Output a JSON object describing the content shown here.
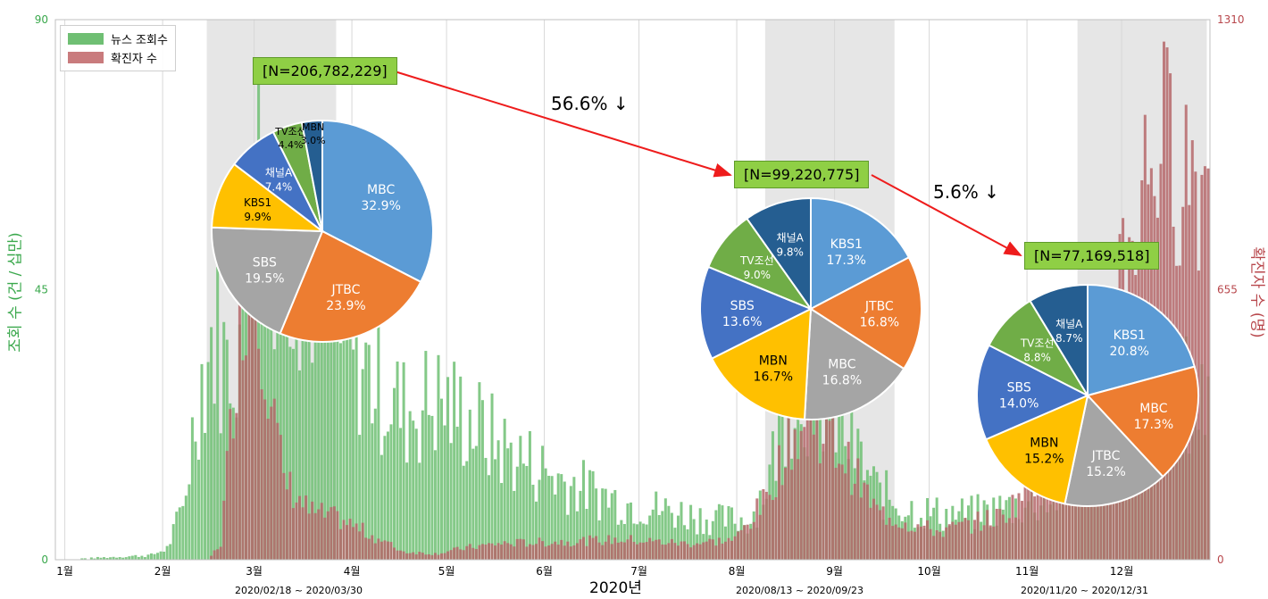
{
  "chart_data": {
    "type": "bar",
    "xlabel": "2020년",
    "ylabel_left": "조회 수 (건 / 십만)",
    "ylabel_right": "확진자 수 (명)",
    "ylim_left": [
      0,
      90
    ],
    "ylim_right": [
      0,
      1310
    ],
    "yticks_left": [
      "0",
      "45",
      "90"
    ],
    "yticks_right": [
      "0",
      "655",
      "1310"
    ],
    "months": [
      "1월",
      "2월",
      "3월",
      "4월",
      "5월",
      "6월",
      "7월",
      "8월",
      "9월",
      "10월",
      "11월",
      "12월"
    ],
    "legend": [
      {
        "label": "뉴스 조회수",
        "color": "#6fbf73"
      },
      {
        "label": "확진자 수",
        "color": "#c97b7d"
      }
    ],
    "news_profile": [
      {
        "day": 0,
        "value": 0
      },
      {
        "day": 30,
        "value": 0.8
      },
      {
        "day": 35,
        "value": 2
      },
      {
        "day": 40,
        "value": 9
      },
      {
        "day": 45,
        "value": 30
      },
      {
        "day": 50,
        "value": 40
      },
      {
        "day": 54,
        "value": 34
      },
      {
        "day": 58,
        "value": 40
      },
      {
        "day": 62,
        "value": 70
      },
      {
        "day": 70,
        "value": 62
      },
      {
        "day": 80,
        "value": 52
      },
      {
        "day": 90,
        "value": 40
      },
      {
        "day": 100,
        "value": 32
      },
      {
        "day": 110,
        "value": 26
      },
      {
        "day": 120,
        "value": 28
      },
      {
        "day": 130,
        "value": 25
      },
      {
        "day": 140,
        "value": 20
      },
      {
        "day": 150,
        "value": 17
      },
      {
        "day": 160,
        "value": 14
      },
      {
        "day": 170,
        "value": 12
      },
      {
        "day": 180,
        "value": 10
      },
      {
        "day": 190,
        "value": 9
      },
      {
        "day": 200,
        "value": 8
      },
      {
        "day": 210,
        "value": 7
      },
      {
        "day": 220,
        "value": 7
      },
      {
        "day": 226,
        "value": 15
      },
      {
        "day": 232,
        "value": 30
      },
      {
        "day": 240,
        "value": 30
      },
      {
        "day": 250,
        "value": 22
      },
      {
        "day": 260,
        "value": 12
      },
      {
        "day": 270,
        "value": 9
      },
      {
        "day": 280,
        "value": 8
      },
      {
        "day": 290,
        "value": 8
      },
      {
        "day": 300,
        "value": 9
      },
      {
        "day": 310,
        "value": 10
      },
      {
        "day": 320,
        "value": 12
      },
      {
        "day": 330,
        "value": 18
      },
      {
        "day": 340,
        "value": 25
      },
      {
        "day": 350,
        "value": 30
      },
      {
        "day": 360,
        "value": 28
      }
    ],
    "cases_profile": [
      {
        "day": 0,
        "value": 0
      },
      {
        "day": 48,
        "value": 0
      },
      {
        "day": 52,
        "value": 40
      },
      {
        "day": 57,
        "value": 500
      },
      {
        "day": 62,
        "value": 800
      },
      {
        "day": 67,
        "value": 450
      },
      {
        "day": 72,
        "value": 200
      },
      {
        "day": 80,
        "value": 120
      },
      {
        "day": 90,
        "value": 100
      },
      {
        "day": 100,
        "value": 60
      },
      {
        "day": 110,
        "value": 20
      },
      {
        "day": 120,
        "value": 15
      },
      {
        "day": 130,
        "value": 30
      },
      {
        "day": 140,
        "value": 40
      },
      {
        "day": 160,
        "value": 45
      },
      {
        "day": 180,
        "value": 50
      },
      {
        "day": 200,
        "value": 40
      },
      {
        "day": 215,
        "value": 50
      },
      {
        "day": 225,
        "value": 150
      },
      {
        "day": 232,
        "value": 300
      },
      {
        "day": 240,
        "value": 350
      },
      {
        "day": 250,
        "value": 250
      },
      {
        "day": 260,
        "value": 120
      },
      {
        "day": 270,
        "value": 90
      },
      {
        "day": 280,
        "value": 70
      },
      {
        "day": 290,
        "value": 90
      },
      {
        "day": 300,
        "value": 110
      },
      {
        "day": 310,
        "value": 200
      },
      {
        "day": 320,
        "value": 330
      },
      {
        "day": 330,
        "value": 550
      },
      {
        "day": 340,
        "value": 800
      },
      {
        "day": 348,
        "value": 1050
      },
      {
        "day": 356,
        "value": 1000
      },
      {
        "day": 365,
        "value": 950
      }
    ],
    "shaded_periods": [
      {
        "start_day": 48,
        "end_day": 89
      },
      {
        "start_day": 225,
        "end_day": 266
      },
      {
        "start_day": 324,
        "end_day": 365
      }
    ],
    "pies": [
      {
        "total": "[N=206,782,229]",
        "slices": [
          {
            "label": "MBC",
            "value": 32.9,
            "pct": "32.9%",
            "color": "#5b9bd5"
          },
          {
            "label": "JTBC",
            "value": 23.9,
            "pct": "23.9%",
            "color": "#ed7d31"
          },
          {
            "label": "SBS",
            "value": 19.5,
            "pct": "19.5%",
            "color": "#a5a5a5"
          },
          {
            "label": "KBS1",
            "value": 9.9,
            "pct": "9.9%",
            "color": "#ffc000"
          },
          {
            "label": "채널A",
            "value": 7.4,
            "pct": "7.4%",
            "color": "#4472c4"
          },
          {
            "label": "TV조선",
            "value": 4.4,
            "pct": "4.4%",
            "color": "#70ad47"
          },
          {
            "label": "MBN",
            "value": 3.0,
            "pct": "3.0%",
            "color": "#255e91"
          }
        ]
      },
      {
        "total": "[N=99,220,775]",
        "slices": [
          {
            "label": "KBS1",
            "value": 17.3,
            "pct": "17.3%",
            "color": "#5b9bd5"
          },
          {
            "label": "JTBC",
            "value": 16.8,
            "pct": "16.8%",
            "color": "#ed7d31"
          },
          {
            "label": "MBC",
            "value": 16.8,
            "pct": "16.8%",
            "color": "#a5a5a5"
          },
          {
            "label": "MBN",
            "value": 16.7,
            "pct": "16.7%",
            "color": "#ffc000"
          },
          {
            "label": "SBS",
            "value": 13.6,
            "pct": "13.6%",
            "color": "#4472c4"
          },
          {
            "label": "TV조선",
            "value": 9.0,
            "pct": "9.0%",
            "color": "#70ad47"
          },
          {
            "label": "채널A",
            "value": 9.8,
            "pct": "9.8%",
            "color": "#255e91"
          }
        ]
      },
      {
        "total": "[N=77,169,518]",
        "slices": [
          {
            "label": "KBS1",
            "value": 20.8,
            "pct": "20.8%",
            "color": "#5b9bd5"
          },
          {
            "label": "MBC",
            "value": 17.3,
            "pct": "17.3%",
            "color": "#ed7d31"
          },
          {
            "label": "JTBC",
            "value": 15.2,
            "pct": "15.2%",
            "color": "#a5a5a5"
          },
          {
            "label": "MBN",
            "value": 15.2,
            "pct": "15.2%",
            "color": "#ffc000"
          },
          {
            "label": "SBS",
            "value": 14.0,
            "pct": "14.0%",
            "color": "#4472c4"
          },
          {
            "label": "TV조선",
            "value": 8.8,
            "pct": "8.8%",
            "color": "#70ad47"
          },
          {
            "label": "채널A",
            "value": 8.7,
            "pct": "8.7%",
            "color": "#255e91"
          }
        ]
      }
    ],
    "changes": [
      "56.6% ↓",
      "5.6% ↓"
    ],
    "period_labels": [
      "2020/02/18 ~ 2020/03/30",
      "2020/08/13 ~ 2020/09/23",
      "2020/11/20 ~ 2020/12/31"
    ]
  }
}
